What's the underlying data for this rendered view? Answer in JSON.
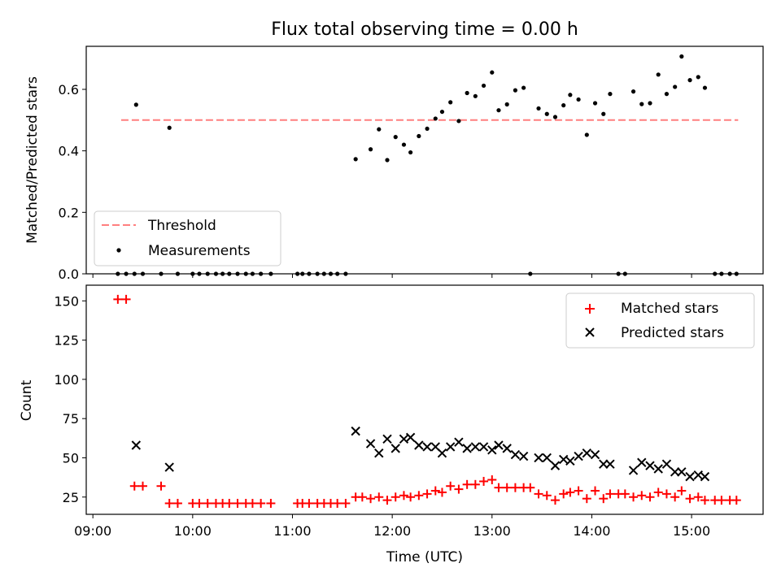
{
  "chart_data": [
    {
      "type": "scatter",
      "title": "Flux total observing time = 0.00 h",
      "xlabel": "",
      "ylabel": "Matched/Predicted stars",
      "ylim": [
        0,
        0.74
      ],
      "yticks": [
        "0.0",
        "0.2",
        "0.4",
        "0.6"
      ],
      "xlim": [
        "08:56",
        "15:43"
      ],
      "legend": {
        "placement": "lower-left",
        "entries": [
          "Threshold",
          "Measurements"
        ]
      },
      "threshold": {
        "name": "Threshold",
        "value": 0.5,
        "x_start": "09:17",
        "x_end": "15:28",
        "color": "#ff7f7f",
        "style": "dashed"
      },
      "series": [
        {
          "name": "Measurements",
          "marker": "dot",
          "color": "#000000",
          "points": [
            [
              "09:15",
              0.0
            ],
            [
              "09:20",
              0.0
            ],
            [
              "09:25",
              0.0
            ],
            [
              "09:26",
              0.55
            ],
            [
              "09:30",
              0.0
            ],
            [
              "09:41",
              0.0
            ],
            [
              "09:46",
              0.475
            ],
            [
              "09:51",
              0.0
            ],
            [
              "10:00",
              0.0
            ],
            [
              "10:04",
              0.0
            ],
            [
              "10:09",
              0.0
            ],
            [
              "10:14",
              0.0
            ],
            [
              "10:18",
              0.0
            ],
            [
              "10:22",
              0.0
            ],
            [
              "10:27",
              0.0
            ],
            [
              "10:32",
              0.0
            ],
            [
              "10:36",
              0.0
            ],
            [
              "10:41",
              0.0
            ],
            [
              "10:47",
              0.0
            ],
            [
              "11:03",
              0.0
            ],
            [
              "11:06",
              0.0
            ],
            [
              "11:10",
              0.0
            ],
            [
              "11:15",
              0.0
            ],
            [
              "11:19",
              0.0
            ],
            [
              "11:23",
              0.0
            ],
            [
              "11:27",
              0.0
            ],
            [
              "11:32",
              0.0
            ],
            [
              "11:38",
              0.373
            ],
            [
              "11:47",
              0.405
            ],
            [
              "11:52",
              0.47
            ],
            [
              "11:57",
              0.37
            ],
            [
              "12:02",
              0.445
            ],
            [
              "12:07",
              0.42
            ],
            [
              "12:11",
              0.395
            ],
            [
              "12:16",
              0.448
            ],
            [
              "12:21",
              0.472
            ],
            [
              "12:26",
              0.505
            ],
            [
              "12:30",
              0.527
            ],
            [
              "12:35",
              0.558
            ],
            [
              "12:40",
              0.497
            ],
            [
              "12:45",
              0.588
            ],
            [
              "12:50",
              0.578
            ],
            [
              "12:55",
              0.612
            ],
            [
              "13:00",
              0.655
            ],
            [
              "13:04",
              0.532
            ],
            [
              "13:09",
              0.551
            ],
            [
              "13:14",
              0.597
            ],
            [
              "13:19",
              0.605
            ],
            [
              "13:23",
              0.0
            ],
            [
              "13:28",
              0.538
            ],
            [
              "13:33",
              0.52
            ],
            [
              "13:38",
              0.51
            ],
            [
              "13:43",
              0.548
            ],
            [
              "13:47",
              0.582
            ],
            [
              "13:52",
              0.567
            ],
            [
              "13:57",
              0.452
            ],
            [
              "14:02",
              0.555
            ],
            [
              "14:07",
              0.52
            ],
            [
              "14:11",
              0.585
            ],
            [
              "14:16",
              0.0
            ],
            [
              "14:20",
              0.0
            ],
            [
              "14:25",
              0.593
            ],
            [
              "14:30",
              0.552
            ],
            [
              "14:35",
              0.555
            ],
            [
              "14:40",
              0.648
            ],
            [
              "14:45",
              0.585
            ],
            [
              "14:50",
              0.608
            ],
            [
              "14:54",
              0.707
            ],
            [
              "14:59",
              0.63
            ],
            [
              "15:04",
              0.64
            ],
            [
              "15:08",
              0.605
            ],
            [
              "15:14",
              0.0
            ],
            [
              "15:18",
              0.0
            ],
            [
              "15:23",
              0.0
            ],
            [
              "15:27",
              0.0
            ]
          ]
        }
      ]
    },
    {
      "type": "scatter",
      "title": "",
      "xlabel": "Time (UTC)",
      "ylabel": "Count",
      "ylim": [
        14,
        160
      ],
      "yticks": [
        "25",
        "50",
        "75",
        "100",
        "125",
        "150"
      ],
      "xlim": [
        "08:56",
        "15:43"
      ],
      "xticks": [
        "09:00",
        "10:00",
        "11:00",
        "12:00",
        "13:00",
        "14:00",
        "15:00"
      ],
      "legend": {
        "placement": "top-right",
        "entries": [
          "Matched stars",
          "Predicted stars"
        ]
      },
      "series": [
        {
          "name": "Matched stars",
          "marker": "plus",
          "color": "#ff0000",
          "points": [
            [
              "09:15",
              151
            ],
            [
              "09:20",
              151
            ],
            [
              "09:25",
              32
            ],
            [
              "09:30",
              32
            ],
            [
              "09:41",
              32
            ],
            [
              "09:46",
              21
            ],
            [
              "09:51",
              21
            ],
            [
              "10:00",
              21
            ],
            [
              "10:04",
              21
            ],
            [
              "10:09",
              21
            ],
            [
              "10:14",
              21
            ],
            [
              "10:18",
              21
            ],
            [
              "10:22",
              21
            ],
            [
              "10:27",
              21
            ],
            [
              "10:32",
              21
            ],
            [
              "10:36",
              21
            ],
            [
              "10:41",
              21
            ],
            [
              "10:47",
              21
            ],
            [
              "11:03",
              21
            ],
            [
              "11:06",
              21
            ],
            [
              "11:10",
              21
            ],
            [
              "11:15",
              21
            ],
            [
              "11:19",
              21
            ],
            [
              "11:23",
              21
            ],
            [
              "11:27",
              21
            ],
            [
              "11:32",
              21
            ],
            [
              "11:38",
              25
            ],
            [
              "11:42",
              25
            ],
            [
              "11:47",
              24
            ],
            [
              "11:52",
              25
            ],
            [
              "11:57",
              23
            ],
            [
              "12:02",
              25
            ],
            [
              "12:07",
              26
            ],
            [
              "12:11",
              25
            ],
            [
              "12:16",
              26
            ],
            [
              "12:21",
              27
            ],
            [
              "12:26",
              29
            ],
            [
              "12:30",
              28
            ],
            [
              "12:35",
              32
            ],
            [
              "12:40",
              30
            ],
            [
              "12:45",
              33
            ],
            [
              "12:50",
              33
            ],
            [
              "12:55",
              35
            ],
            [
              "13:00",
              36
            ],
            [
              "13:04",
              31
            ],
            [
              "13:09",
              31
            ],
            [
              "13:14",
              31
            ],
            [
              "13:19",
              31
            ],
            [
              "13:23",
              31
            ],
            [
              "13:28",
              27
            ],
            [
              "13:33",
              26
            ],
            [
              "13:38",
              23
            ],
            [
              "13:43",
              27
            ],
            [
              "13:47",
              28
            ],
            [
              "13:52",
              29
            ],
            [
              "13:57",
              24
            ],
            [
              "14:02",
              29
            ],
            [
              "14:07",
              24
            ],
            [
              "14:11",
              27
            ],
            [
              "14:16",
              27
            ],
            [
              "14:20",
              27
            ],
            [
              "14:25",
              25
            ],
            [
              "14:30",
              26
            ],
            [
              "14:35",
              25
            ],
            [
              "14:40",
              28
            ],
            [
              "14:45",
              27
            ],
            [
              "14:50",
              25
            ],
            [
              "14:54",
              29
            ],
            [
              "14:59",
              24
            ],
            [
              "15:04",
              25
            ],
            [
              "15:08",
              23
            ],
            [
              "15:14",
              23
            ],
            [
              "15:18",
              23
            ],
            [
              "15:23",
              23
            ],
            [
              "15:27",
              23
            ]
          ]
        },
        {
          "name": "Predicted stars",
          "marker": "x",
          "color": "#000000",
          "points": [
            [
              "09:26",
              58
            ],
            [
              "09:46",
              44
            ],
            [
              "11:38",
              67
            ],
            [
              "11:47",
              59
            ],
            [
              "11:52",
              53
            ],
            [
              "11:57",
              62
            ],
            [
              "12:02",
              56
            ],
            [
              "12:07",
              62
            ],
            [
              "12:11",
              63
            ],
            [
              "12:16",
              58
            ],
            [
              "12:21",
              57
            ],
            [
              "12:26",
              57
            ],
            [
              "12:30",
              53
            ],
            [
              "12:35",
              57
            ],
            [
              "12:40",
              60
            ],
            [
              "12:45",
              56
            ],
            [
              "12:50",
              57
            ],
            [
              "12:55",
              57
            ],
            [
              "13:00",
              55
            ],
            [
              "13:04",
              58
            ],
            [
              "13:09",
              56
            ],
            [
              "13:14",
              52
            ],
            [
              "13:19",
              51
            ],
            [
              "13:28",
              50
            ],
            [
              "13:33",
              50
            ],
            [
              "13:38",
              45
            ],
            [
              "13:43",
              49
            ],
            [
              "13:47",
              48
            ],
            [
              "13:52",
              51
            ],
            [
              "13:57",
              53
            ],
            [
              "14:02",
              52
            ],
            [
              "14:07",
              46
            ],
            [
              "14:11",
              46
            ],
            [
              "14:25",
              42
            ],
            [
              "14:30",
              47
            ],
            [
              "14:35",
              45
            ],
            [
              "14:40",
              43
            ],
            [
              "14:45",
              46
            ],
            [
              "14:50",
              41
            ],
            [
              "14:54",
              41
            ],
            [
              "14:59",
              38
            ],
            [
              "15:04",
              39
            ],
            [
              "15:08",
              38
            ]
          ]
        }
      ]
    }
  ]
}
